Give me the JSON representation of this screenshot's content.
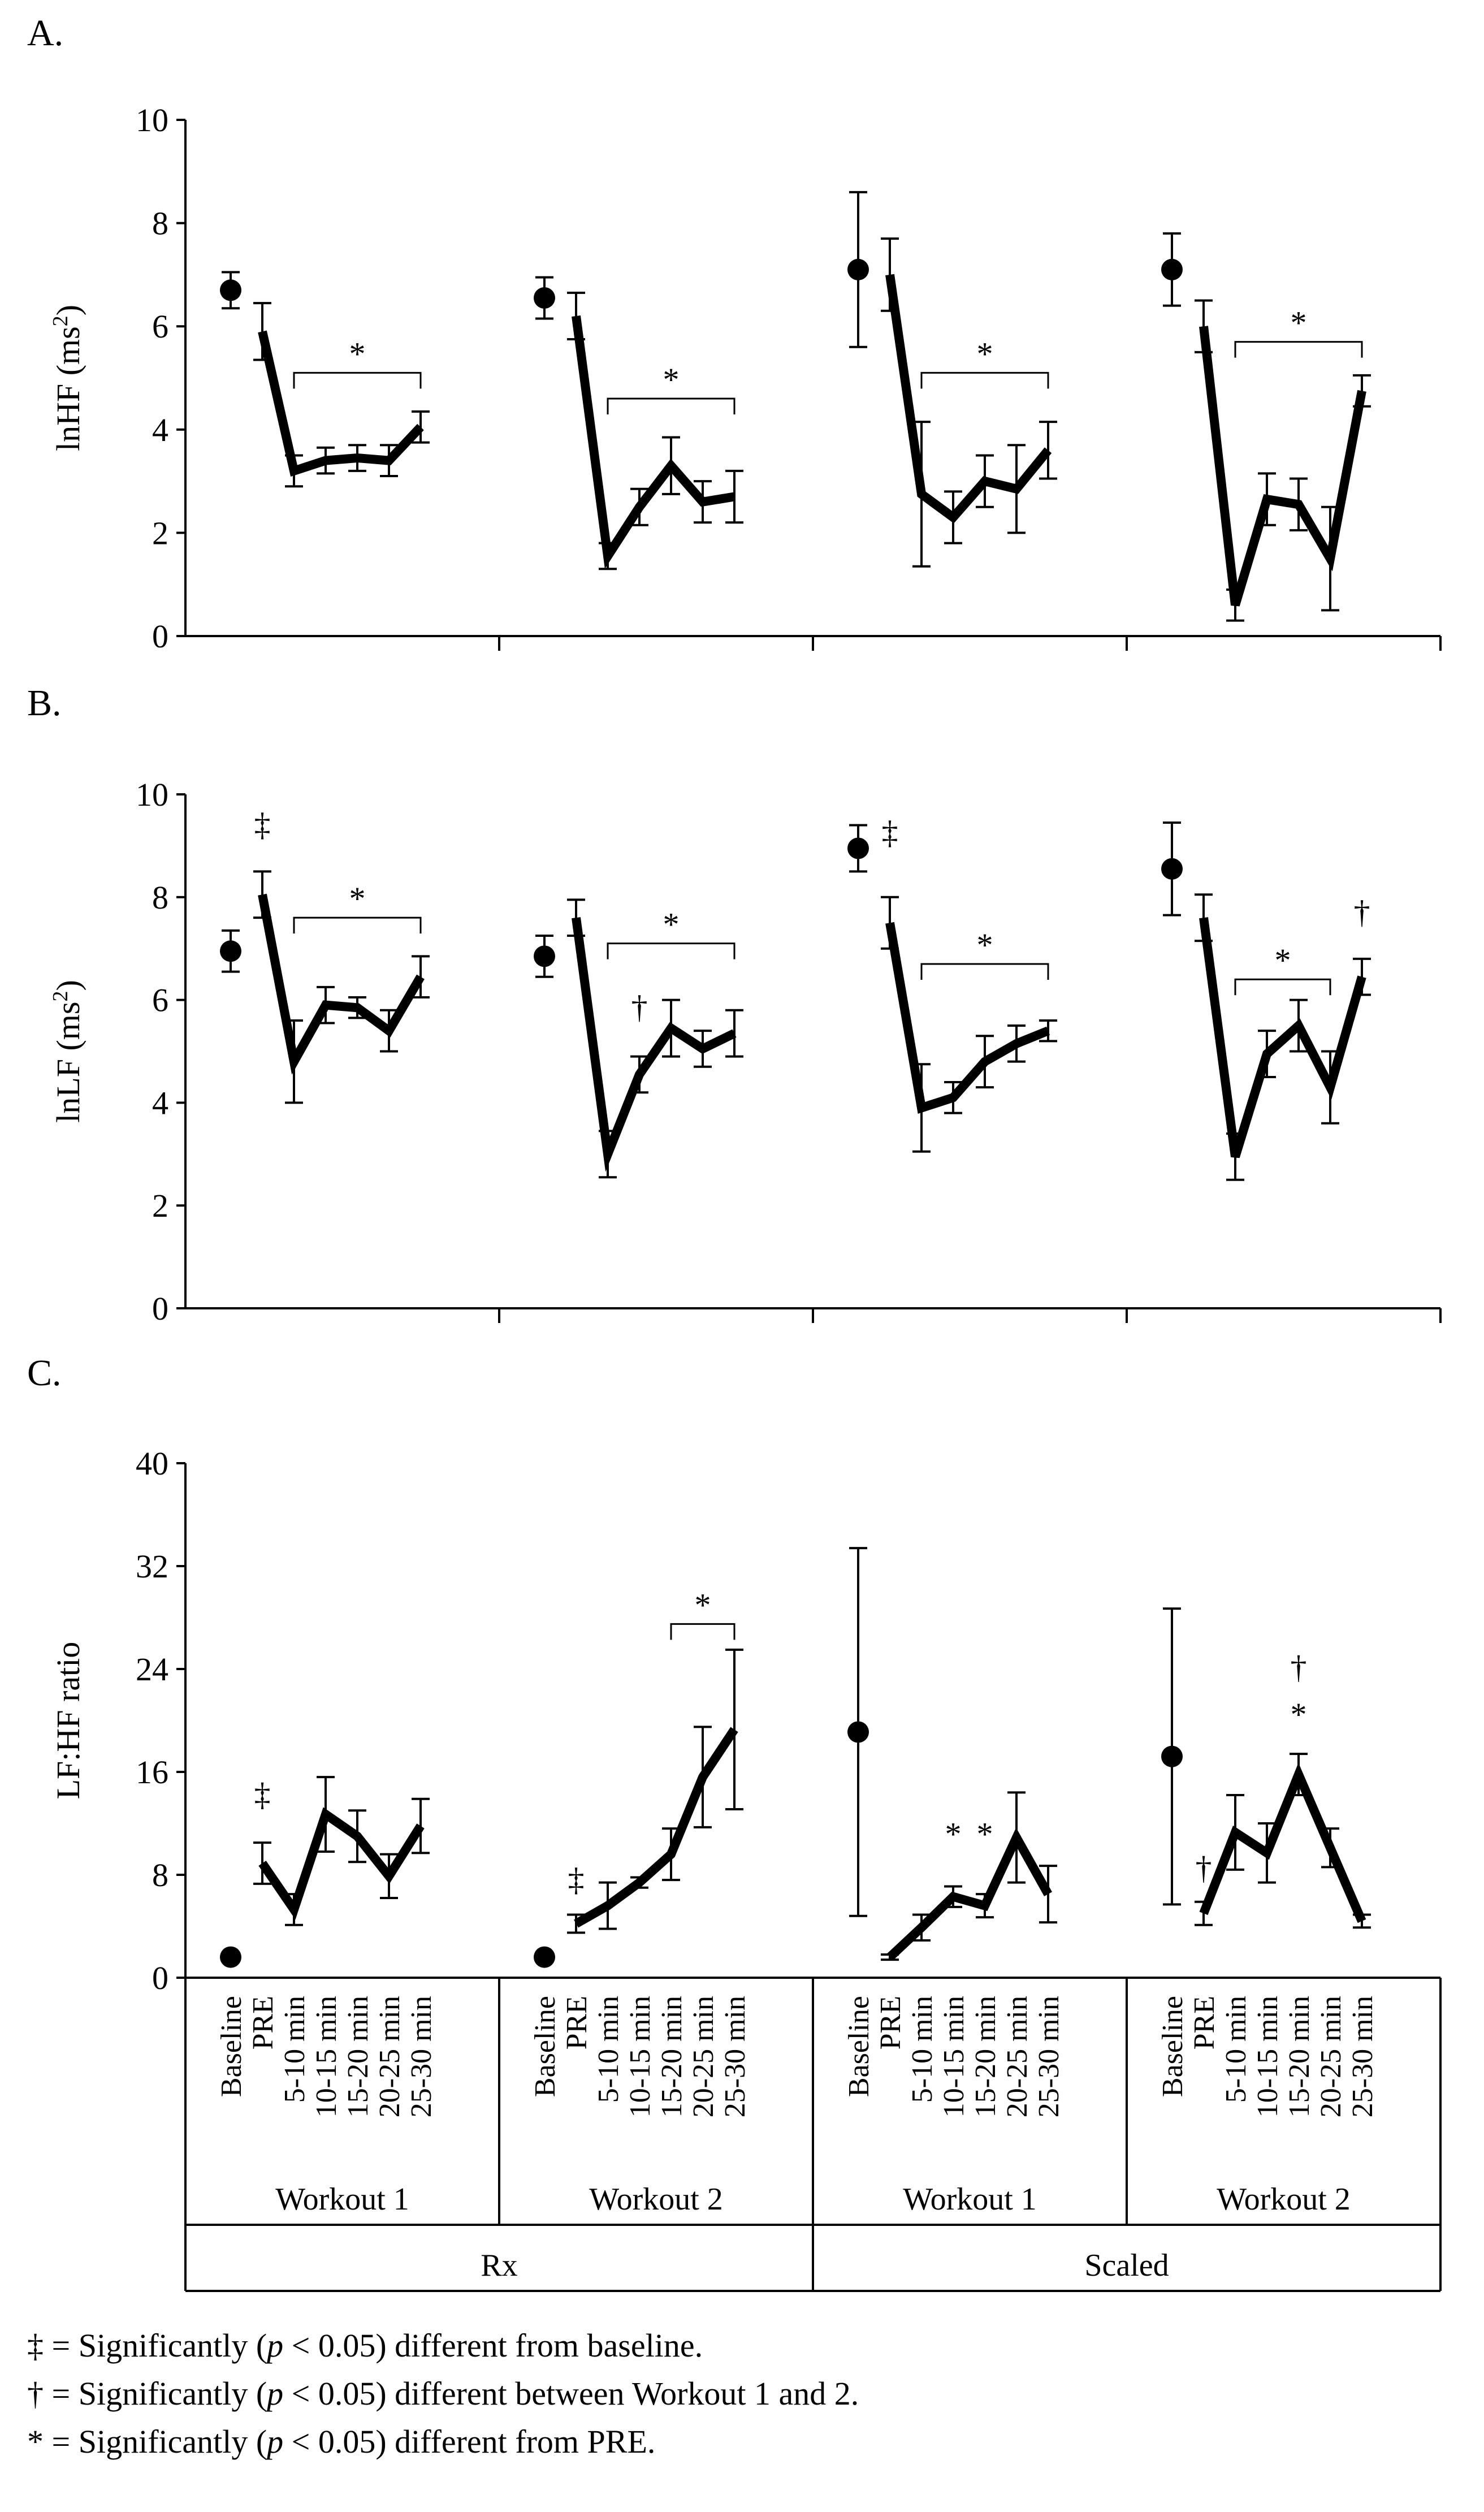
{
  "chart_data": [
    {
      "type": "line",
      "panel_label": "A.",
      "ylabel": "lnHF (ms²)",
      "ylabel_base": "lnHF (ms",
      "ylabel_sup": "2",
      "ylabel_close": ")",
      "ylim": [
        0,
        10
      ],
      "yticks": [
        "0",
        "2",
        "4",
        "6",
        "8",
        "10"
      ],
      "tick_step": 2,
      "groups": [
        {
          "baseline": 6.7,
          "baseline_err": 0.35,
          "values": [
            5.9,
            3.2,
            3.4,
            3.45,
            3.4,
            4.05
          ],
          "errors": [
            0.55,
            0.3,
            0.25,
            0.25,
            0.3,
            0.3
          ]
        },
        {
          "baseline": 6.55,
          "baseline_err": 0.4,
          "values": [
            6.2,
            1.55,
            2.5,
            3.3,
            2.6,
            2.7
          ],
          "errors": [
            0.45,
            0.25,
            0.35,
            0.55,
            0.4,
            0.5
          ]
        },
        {
          "baseline": 7.1,
          "baseline_err": 1.5,
          "values": [
            7.0,
            2.75,
            2.3,
            3.0,
            2.85,
            3.6
          ],
          "errors": [
            0.7,
            1.4,
            0.5,
            0.5,
            0.85,
            0.55
          ]
        },
        {
          "baseline": 7.1,
          "baseline_err": 0.7,
          "values": [
            6.0,
            0.6,
            2.65,
            2.55,
            1.5,
            4.75
          ],
          "errors": [
            0.5,
            0.3,
            0.5,
            0.5,
            1.0,
            0.3
          ]
        }
      ],
      "annotations": [
        {
          "type": "bracket",
          "group": 0,
          "from": 1,
          "to": 5,
          "y": 5.1,
          "text": "*"
        },
        {
          "type": "bracket",
          "group": 1,
          "from": 1,
          "to": 5,
          "y": 4.6,
          "text": "*"
        },
        {
          "type": "bracket",
          "group": 2,
          "from": 1,
          "to": 5,
          "y": 5.1,
          "text": "*"
        },
        {
          "type": "bracket",
          "group": 3,
          "from": 1,
          "to": 5,
          "y": 5.7,
          "text": "*"
        }
      ]
    },
    {
      "type": "line",
      "panel_label": "B.",
      "ylabel": "lnLF (ms²)",
      "ylabel_base": "lnLF (ms",
      "ylabel_sup": "2",
      "ylabel_close": ")",
      "ylim": [
        0,
        10
      ],
      "yticks": [
        "0",
        "2",
        "4",
        "6",
        "8",
        "10"
      ],
      "tick_step": 2,
      "groups": [
        {
          "baseline": 6.95,
          "baseline_err": 0.4,
          "values": [
            8.05,
            4.8,
            5.9,
            5.85,
            5.4,
            6.45
          ],
          "errors": [
            0.45,
            0.8,
            0.35,
            0.2,
            0.4,
            0.4
          ]
        },
        {
          "baseline": 6.85,
          "baseline_err": 0.4,
          "values": [
            7.6,
            3.0,
            4.55,
            5.45,
            5.05,
            5.35
          ],
          "errors": [
            0.35,
            0.45,
            0.35,
            0.55,
            0.35,
            0.45
          ]
        },
        {
          "baseline": 8.95,
          "baseline_err": 0.45,
          "values": [
            7.5,
            3.9,
            4.1,
            4.8,
            5.15,
            5.4
          ],
          "errors": [
            0.5,
            0.85,
            0.3,
            0.5,
            0.35,
            0.2
          ]
        },
        {
          "baseline": 8.55,
          "baseline_err": 0.9,
          "values": [
            7.6,
            2.95,
            4.95,
            5.5,
            4.3,
            6.45
          ],
          "errors": [
            0.45,
            0.45,
            0.45,
            0.5,
            0.7,
            0.35
          ]
        }
      ],
      "annotations": [
        {
          "type": "bracket",
          "group": 0,
          "from": 1,
          "to": 5,
          "y": 7.6,
          "text": "*"
        },
        {
          "type": "bracket",
          "group": 1,
          "from": 1,
          "to": 5,
          "y": 7.1,
          "text": "*"
        },
        {
          "type": "bracket",
          "group": 2,
          "from": 1,
          "to": 5,
          "y": 6.7,
          "text": "*"
        },
        {
          "type": "bracket",
          "group": 3,
          "from": 1,
          "to": 4,
          "y": 6.4,
          "text": "*"
        },
        {
          "type": "symbol",
          "group": 0,
          "index": 0,
          "y": 9.2,
          "text": "‡"
        },
        {
          "type": "symbol",
          "group": 2,
          "index": 0,
          "y": 9.05,
          "text": "‡"
        },
        {
          "type": "symbol",
          "group": 1,
          "index": 2,
          "y": 5.65,
          "text": "†"
        },
        {
          "type": "symbol",
          "group": 3,
          "index": 5,
          "y": 7.5,
          "text": "†"
        }
      ]
    },
    {
      "type": "line",
      "panel_label": "C.",
      "ylabel": "LF:HF ratio",
      "ylim": [
        0,
        40
      ],
      "yticks": [
        "0",
        "8",
        "16",
        "24",
        "32",
        "40"
      ],
      "tick_step": 8,
      "groups": [
        {
          "baseline": 1.6,
          "baseline_err": 0.3,
          "values": [
            8.9,
            5.3,
            12.7,
            11.0,
            7.9,
            11.8
          ],
          "errors": [
            1.6,
            1.2,
            2.9,
            2.0,
            1.7,
            2.1
          ]
        },
        {
          "baseline": 1.6,
          "baseline_err": 0.3,
          "values": [
            4.2,
            5.6,
            7.4,
            9.6,
            15.6,
            19.3
          ],
          "errors": [
            0.7,
            1.8,
            0.4,
            2.0,
            3.9,
            6.2
          ]
        },
        {
          "baseline": 19.1,
          "baseline_err": 14.3,
          "values": [
            1.6,
            3.9,
            6.3,
            5.6,
            10.9,
            6.5
          ],
          "errors": [
            0.2,
            1.0,
            0.8,
            0.9,
            3.5,
            2.2
          ]
        },
        {
          "baseline": 17.2,
          "baseline_err": 11.5,
          "values": [
            5.0,
            11.3,
            9.7,
            15.8,
            10.1,
            4.4
          ],
          "errors": [
            0.9,
            2.9,
            2.3,
            1.6,
            1.5,
            0.5
          ]
        }
      ],
      "annotations": [
        {
          "type": "bracket",
          "group": 1,
          "from": 3,
          "to": 5,
          "y": 27.5,
          "text": "*"
        },
        {
          "type": "symbol",
          "group": 0,
          "index": 0,
          "y": 13.4,
          "text": "‡"
        },
        {
          "type": "symbol",
          "group": 1,
          "index": 0,
          "y": 6.8,
          "text": "‡"
        },
        {
          "type": "symbol",
          "group": 2,
          "index": 2,
          "y": 10.3,
          "text": "*"
        },
        {
          "type": "symbol",
          "group": 2,
          "index": 3,
          "y": 10.3,
          "text": "*"
        },
        {
          "type": "symbol",
          "group": 3,
          "index": 3,
          "y": 19.6,
          "text": "*"
        },
        {
          "type": "symbol",
          "group": 3,
          "index": 3,
          "y": 23.3,
          "text": "†"
        },
        {
          "type": "symbol",
          "group": 3,
          "index": 0,
          "y": 7.7,
          "text": "†"
        }
      ]
    }
  ],
  "x_categories": [
    "Baseline",
    "PRE",
    "5-10 min",
    "10-15 min",
    "15-20 min",
    "20-25 min",
    "25-30 min"
  ],
  "workout_labels": [
    "Workout 1",
    "Workout 2",
    "Workout 1",
    "Workout 2"
  ],
  "condition_labels": [
    "Rx",
    "Scaled"
  ],
  "legend": {
    "double_dagger": {
      "symbol": "‡",
      "pre": " = Significantly (",
      "p": "p",
      "post": " < 0.05) different from baseline."
    },
    "dagger": {
      "symbol": "†",
      "pre": " = Significantly (",
      "p": "p",
      "post": " < 0.05) different between Workout 1 and 2."
    },
    "asterisk": {
      "symbol": "*",
      "pre": " = Significantly (",
      "p": "p",
      "post": " < 0.05) different from PRE."
    }
  }
}
